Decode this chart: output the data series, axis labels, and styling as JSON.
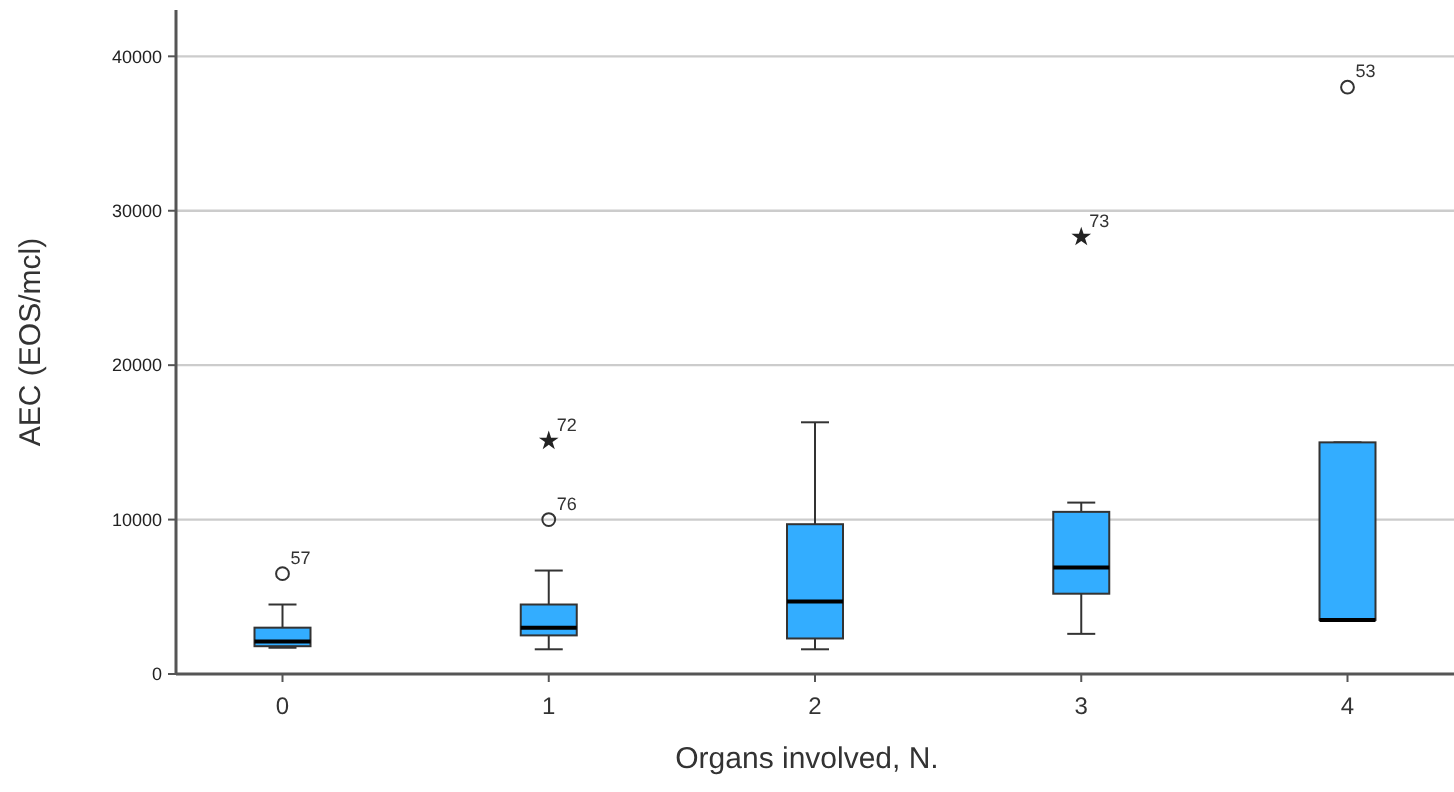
{
  "chart_data": {
    "type": "box",
    "xlabel": "Organs involved, N.",
    "ylabel": "AEC (EOS/mcl)",
    "categories": [
      "0",
      "1",
      "2",
      "3",
      "4"
    ],
    "color": "#33adff",
    "boxes": [
      {
        "low": 1700,
        "q1": 1800,
        "median": 2100,
        "q3": 3000,
        "high": 4500,
        "outliers": [
          6500
        ]
      },
      {
        "low": 1600,
        "q1": 2500,
        "median": 3000,
        "q3": 4500,
        "high": 6700,
        "outliers": [
          10000,
          15100
        ]
      },
      {
        "low": 1600,
        "q1": 2300,
        "median": 4700,
        "q3": 9700,
        "high": 16300
      },
      {
        "low": 2600,
        "q1": 5200,
        "median": 6900,
        "q3": 10500,
        "high": 11100,
        "outliers": [
          28300
        ]
      },
      {
        "low": 3500,
        "q1": 3500,
        "median": 3500,
        "q3": 15000,
        "high": 15000,
        "outliers": [
          38000
        ]
      }
    ],
    "annotations": [
      "57",
      "76",
      "72",
      "73",
      "53"
    ],
    "ylim": [
      0,
      43000
    ],
    "yticks": [
      0,
      10000,
      20000,
      30000,
      40000
    ],
    "grid": "y"
  }
}
